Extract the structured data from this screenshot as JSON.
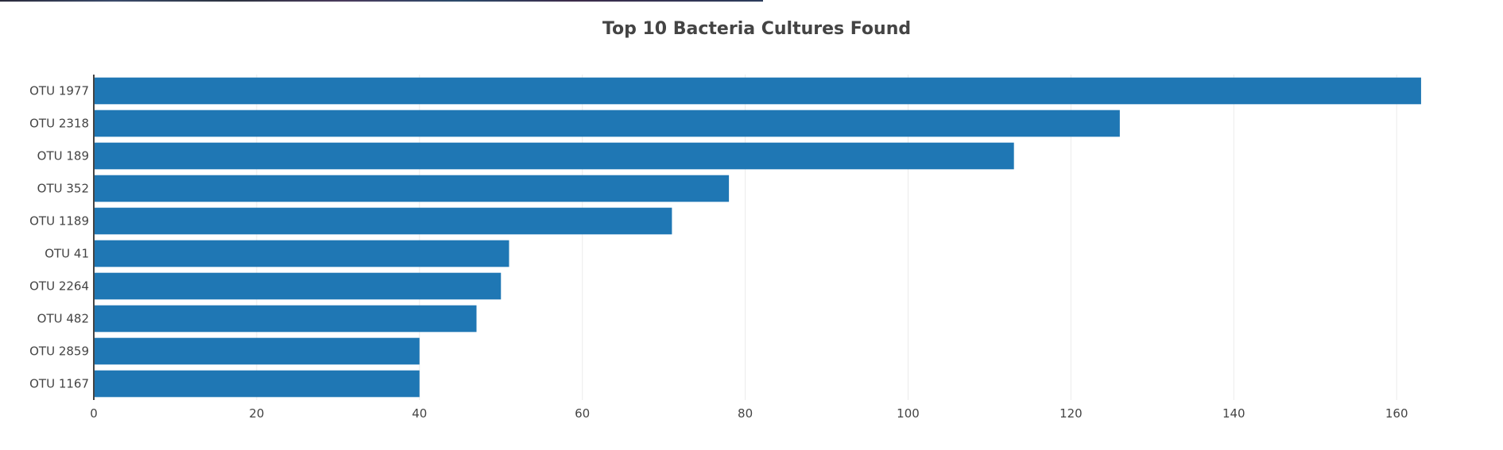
{
  "chart_data": {
    "type": "bar",
    "orientation": "horizontal",
    "title": "Top 10 Bacteria Cultures Found",
    "xlabel": "",
    "ylabel": "",
    "categories": [
      "OTU 1977",
      "OTU 2318",
      "OTU 189",
      "OTU 352",
      "OTU 1189",
      "OTU 41",
      "OTU 2264",
      "OTU 482",
      "OTU 2859",
      "OTU 1167"
    ],
    "values": [
      163,
      126,
      113,
      78,
      71,
      51,
      50,
      47,
      40,
      40
    ],
    "xlim": [
      0,
      172
    ],
    "xticks": [
      0,
      20,
      40,
      60,
      80,
      100,
      120,
      140,
      160
    ],
    "grid": true,
    "legend": "none",
    "colors": {
      "bar": "#1f77b4",
      "grid": "#ebebeb",
      "axis": "#444444",
      "text": "#444444"
    }
  }
}
